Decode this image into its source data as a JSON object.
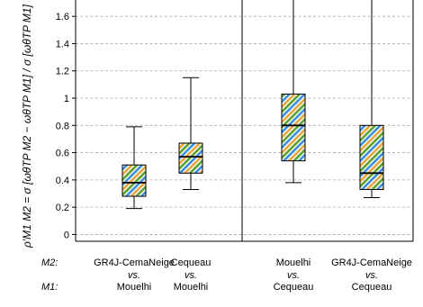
{
  "chart_data": {
    "type": "box",
    "ylabel": "ρ′M1 M2 = σ [ωθTP M2 − ωθTP M1] / σ [ωθTP M1]",
    "ylim": [
      -0.05,
      1.72
    ],
    "yticks": [
      0,
      0.2,
      0.4,
      0.6,
      0.8,
      1,
      1.2,
      1.4,
      1.6
    ],
    "ytick_labels": [
      "0",
      "0.2",
      "0.4",
      "0.6",
      "0.8",
      "1",
      "1.2",
      "1.4",
      "1.6"
    ],
    "grid": "horizontal-dashed",
    "hatch_colors": [
      "#3a8fdc",
      "#e8a33a",
      "#5aa02c"
    ],
    "row_labels": {
      "m2": "M2:",
      "m1": "M1:"
    },
    "vs_text": "vs.",
    "groups": [
      {
        "m2": "GR4J-CemaNeige",
        "m1": "Mouelhi",
        "min": 0.19,
        "q1": 0.28,
        "median": 0.38,
        "q3": 0.51,
        "max": 0.79
      },
      {
        "m2": "Cequeau",
        "m1": "Mouelhi",
        "min": 0.33,
        "q1": 0.45,
        "median": 0.57,
        "q3": 0.67,
        "max": 1.15
      },
      {
        "m2": "Mouelhi",
        "m1": "Cequeau",
        "min": 0.38,
        "q1": 0.54,
        "median": 0.8,
        "q3": 1.03,
        "max": 1.72
      },
      {
        "m2": "GR4J-CemaNeige",
        "m1": "Cequeau",
        "min": 0.27,
        "q1": 0.33,
        "median": 0.45,
        "q3": 0.8,
        "max": 1.72
      }
    ]
  }
}
